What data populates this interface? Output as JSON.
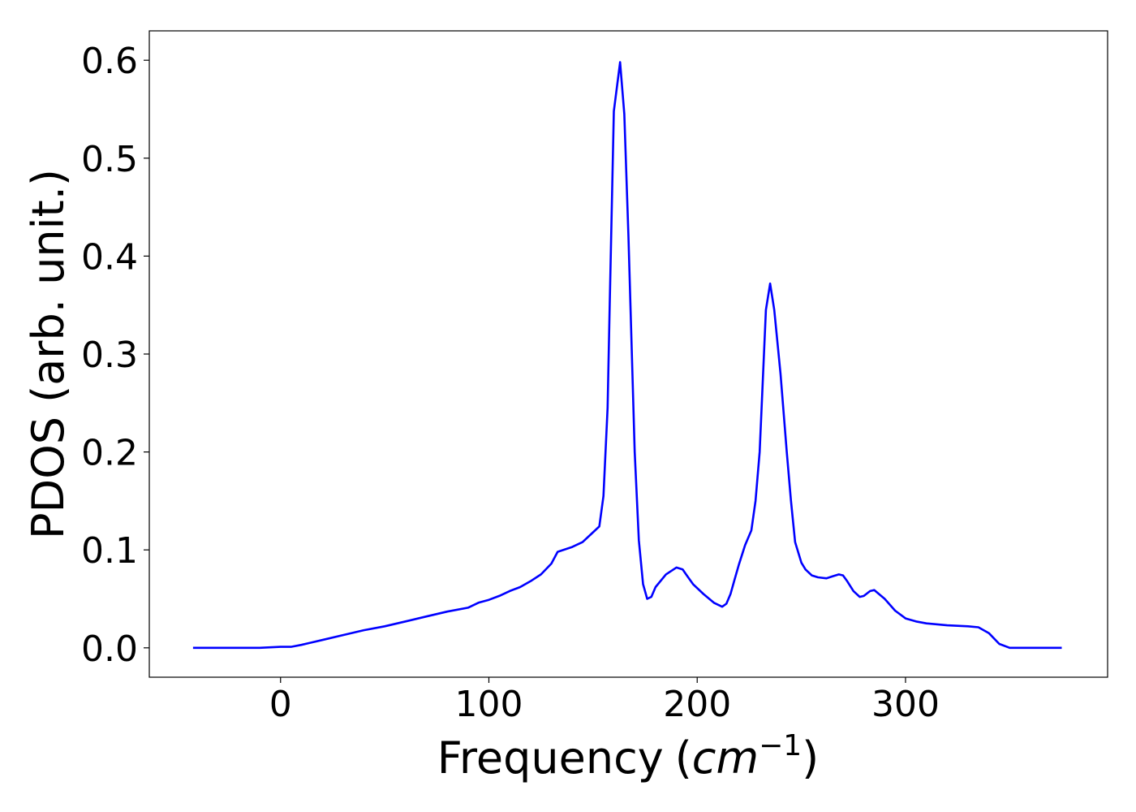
{
  "chart_data": {
    "type": "line",
    "xlabel": "Frequency",
    "xlabel_unit_prefix": "(",
    "xlabel_unit": "cm",
    "xlabel_unit_exponent": "−1",
    "xlabel_unit_suffix": ")",
    "ylabel": "PDOS (arb. unit.)",
    "xlim": [
      -63,
      397
    ],
    "ylim": [
      -0.03,
      0.63
    ],
    "grid": false,
    "legend": "none",
    "x_ticks": [
      0,
      100,
      200,
      300
    ],
    "x_tick_labels": [
      "0",
      "100",
      "200",
      "300"
    ],
    "y_ticks": [
      0.0,
      0.1,
      0.2,
      0.3,
      0.4,
      0.5,
      0.6
    ],
    "y_tick_labels": [
      "0.0",
      "0.1",
      "0.2",
      "0.3",
      "0.4",
      "0.5",
      "0.6"
    ],
    "series": [
      {
        "color": "#0000ff",
        "x": [
          -42,
          -10,
          0,
          5,
          10,
          20,
          30,
          40,
          50,
          60,
          70,
          80,
          90,
          95,
          100,
          105,
          110,
          115,
          120,
          125,
          130,
          133,
          140,
          145,
          150,
          153,
          155,
          157,
          158,
          160,
          163,
          165,
          167,
          170,
          172,
          174,
          176,
          178,
          180,
          185,
          190,
          193,
          195,
          198,
          203,
          208,
          212,
          214,
          216,
          218,
          220,
          223,
          226,
          228,
          230,
          233,
          235,
          237,
          240,
          243,
          245,
          247,
          250,
          252,
          255,
          258,
          262,
          265,
          268,
          270,
          272,
          275,
          278,
          280,
          283,
          285,
          290,
          295,
          300,
          305,
          310,
          320,
          330,
          335,
          340,
          345,
          350,
          360,
          375
        ],
        "y": [
          0.0,
          0.0,
          0.001,
          0.001,
          0.003,
          0.008,
          0.013,
          0.018,
          0.022,
          0.027,
          0.032,
          0.037,
          0.041,
          0.046,
          0.049,
          0.053,
          0.058,
          0.062,
          0.068,
          0.075,
          0.086,
          0.098,
          0.103,
          0.108,
          0.118,
          0.124,
          0.155,
          0.245,
          0.35,
          0.548,
          0.598,
          0.545,
          0.42,
          0.2,
          0.11,
          0.065,
          0.05,
          0.052,
          0.062,
          0.075,
          0.082,
          0.08,
          0.074,
          0.065,
          0.055,
          0.046,
          0.042,
          0.045,
          0.055,
          0.07,
          0.085,
          0.105,
          0.12,
          0.15,
          0.2,
          0.345,
          0.372,
          0.345,
          0.28,
          0.2,
          0.15,
          0.108,
          0.087,
          0.08,
          0.074,
          0.072,
          0.071,
          0.073,
          0.075,
          0.074,
          0.068,
          0.058,
          0.052,
          0.053,
          0.058,
          0.059,
          0.05,
          0.038,
          0.03,
          0.027,
          0.025,
          0.023,
          0.022,
          0.021,
          0.015,
          0.004,
          0.0,
          0.0,
          0.0
        ]
      }
    ]
  }
}
